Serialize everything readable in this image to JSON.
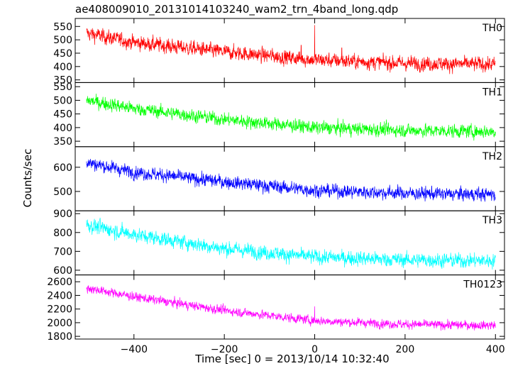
{
  "title": "ae408009010_20131014103240_wam2_trn_4band_long.qdp",
  "xlabel": "Time [sec] 0 = 2013/10/14 10:32:40",
  "ylabel": "Counts/sec",
  "chart_data": {
    "type": "line",
    "title": "ae408009010_20131014103240_wam2_trn_4band_long.qdp",
    "xlabel": "Time [sec] 0 = 2013/10/14 10:32:40",
    "ylabel": "Counts/sec",
    "xlim": [
      -530,
      420
    ],
    "x_ticks": [
      -400,
      -200,
      0,
      200,
      400
    ],
    "x_range_data": [
      -505,
      400
    ],
    "panels": [
      {
        "name": "TH0",
        "color": "#ff0000",
        "ylim": [
          340,
          580
        ],
        "y_ticks": [
          350,
          400,
          450,
          500,
          550
        ],
        "trend": [
          [
            -505,
            525
          ],
          [
            -400,
            490
          ],
          [
            -200,
            455
          ],
          [
            0,
            425
          ],
          [
            200,
            412
          ],
          [
            400,
            408
          ]
        ],
        "noise_amplitude": 25,
        "spikes": [
          [
            0,
            555
          ],
          [
            -30,
            480
          ],
          [
            60,
            470
          ]
        ]
      },
      {
        "name": "TH1",
        "color": "#00ff00",
        "ylim": [
          330,
          565
        ],
        "y_ticks": [
          350,
          400,
          450,
          500,
          550
        ],
        "trend": [
          [
            -505,
            500
          ],
          [
            -400,
            470
          ],
          [
            -200,
            430
          ],
          [
            0,
            400
          ],
          [
            200,
            390
          ],
          [
            400,
            385
          ]
        ],
        "noise_amplitude": 22,
        "spikes": []
      },
      {
        "name": "TH2",
        "color": "#0000ff",
        "ylim": [
          420,
          685
        ],
        "y_ticks": [
          500,
          600
        ],
        "trend": [
          [
            -505,
            620
          ],
          [
            -400,
            580
          ],
          [
            -200,
            540
          ],
          [
            0,
            505
          ],
          [
            200,
            492
          ],
          [
            400,
            488
          ]
        ],
        "noise_amplitude": 25,
        "spikes": []
      },
      {
        "name": "TH3",
        "color": "#00ffff",
        "ylim": [
          575,
          915
        ],
        "y_ticks": [
          600,
          700,
          800,
          900
        ],
        "trend": [
          [
            -505,
            840
          ],
          [
            -400,
            790
          ],
          [
            -200,
            715
          ],
          [
            0,
            670
          ],
          [
            200,
            655
          ],
          [
            400,
            650
          ]
        ],
        "noise_amplitude": 35,
        "spikes": []
      },
      {
        "name": "TH0123",
        "color": "#ff00ff",
        "ylim": [
          1760,
          2700
        ],
        "y_ticks": [
          1800,
          2000,
          2200,
          2400,
          2600
        ],
        "trend": [
          [
            -505,
            2510
          ],
          [
            -400,
            2380
          ],
          [
            -200,
            2180
          ],
          [
            0,
            2030
          ],
          [
            200,
            1975
          ],
          [
            400,
            1960
          ]
        ],
        "noise_amplitude": 60,
        "spikes": [
          [
            0,
            2240
          ]
        ]
      }
    ]
  }
}
